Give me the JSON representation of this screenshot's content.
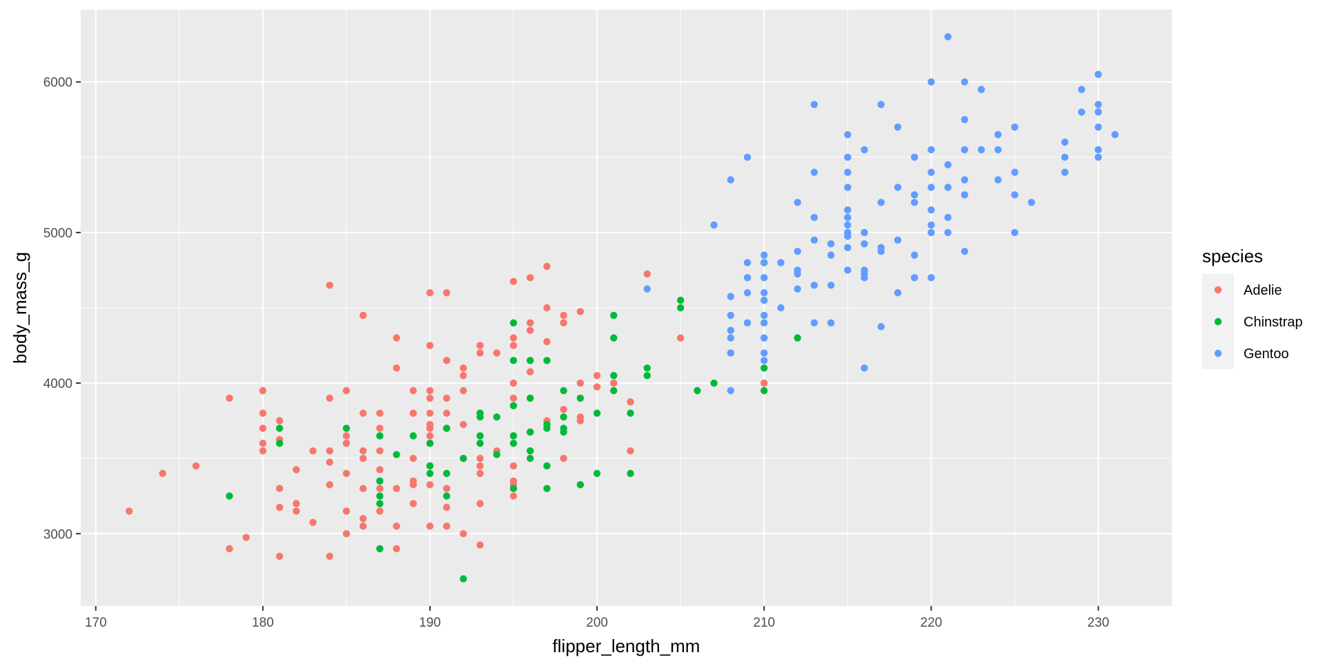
{
  "chart_data": {
    "type": "scatter",
    "title": "",
    "xlabel": "flipper_length_mm",
    "ylabel": "body_mass_g",
    "xlim": [
      169.1,
      234.4
    ],
    "ylim": [
      2520,
      6480
    ],
    "x_ticks": [
      170,
      180,
      190,
      200,
      210,
      220,
      230
    ],
    "y_ticks": [
      3000,
      4000,
      5000,
      6000
    ],
    "grid": true,
    "legend": {
      "title": "species",
      "position": "right"
    },
    "series": [
      {
        "name": "Adelie",
        "color": "#F8766D",
        "points": [
          [
            172,
            3150
          ],
          [
            174,
            3400
          ],
          [
            176,
            3450
          ],
          [
            178,
            3900
          ],
          [
            178,
            2900
          ],
          [
            179,
            2975
          ],
          [
            180,
            3950
          ],
          [
            180,
            3800
          ],
          [
            180,
            3700
          ],
          [
            180,
            3600
          ],
          [
            180,
            3550
          ],
          [
            181,
            3750
          ],
          [
            181,
            3625
          ],
          [
            181,
            3300
          ],
          [
            181,
            3175
          ],
          [
            181,
            2850
          ],
          [
            182,
            3425
          ],
          [
            182,
            3200
          ],
          [
            182,
            3150
          ],
          [
            183,
            3550
          ],
          [
            183,
            3075
          ],
          [
            184,
            4650
          ],
          [
            184,
            3900
          ],
          [
            184,
            3550
          ],
          [
            184,
            3475
          ],
          [
            184,
            3325
          ],
          [
            184,
            2850
          ],
          [
            185,
            3950
          ],
          [
            185,
            3650
          ],
          [
            185,
            3600
          ],
          [
            185,
            3400
          ],
          [
            185,
            3150
          ],
          [
            185,
            3000
          ],
          [
            186,
            4450
          ],
          [
            186,
            3800
          ],
          [
            186,
            3550
          ],
          [
            186,
            3500
          ],
          [
            186,
            3300
          ],
          [
            186,
            3100
          ],
          [
            186,
            3050
          ],
          [
            187,
            3800
          ],
          [
            187,
            3700
          ],
          [
            187,
            3550
          ],
          [
            187,
            3425
          ],
          [
            187,
            3300
          ],
          [
            187,
            3150
          ],
          [
            188,
            4300
          ],
          [
            188,
            4100
          ],
          [
            188,
            3300
          ],
          [
            188,
            3050
          ],
          [
            188,
            2900
          ],
          [
            189,
            3950
          ],
          [
            189,
            3800
          ],
          [
            189,
            3500
          ],
          [
            189,
            3350
          ],
          [
            189,
            3325
          ],
          [
            189,
            3200
          ],
          [
            190,
            4600
          ],
          [
            190,
            4250
          ],
          [
            190,
            3950
          ],
          [
            190,
            3900
          ],
          [
            190,
            3800
          ],
          [
            190,
            3725
          ],
          [
            190,
            3700
          ],
          [
            190,
            3650
          ],
          [
            190,
            3600
          ],
          [
            190,
            3450
          ],
          [
            190,
            3325
          ],
          [
            190,
            3050
          ],
          [
            191,
            4600
          ],
          [
            191,
            4150
          ],
          [
            191,
            3900
          ],
          [
            191,
            3800
          ],
          [
            191,
            3700
          ],
          [
            191,
            3300
          ],
          [
            191,
            3175
          ],
          [
            191,
            3050
          ],
          [
            192,
            4100
          ],
          [
            192,
            4050
          ],
          [
            192,
            3950
          ],
          [
            192,
            3725
          ],
          [
            192,
            3500
          ],
          [
            192,
            3000
          ],
          [
            193,
            4250
          ],
          [
            193,
            4200
          ],
          [
            193,
            3800
          ],
          [
            193,
            3500
          ],
          [
            193,
            3450
          ],
          [
            193,
            3400
          ],
          [
            193,
            3200
          ],
          [
            193,
            2925
          ],
          [
            194,
            4200
          ],
          [
            194,
            3550
          ],
          [
            195,
            4675
          ],
          [
            195,
            4300
          ],
          [
            195,
            4250
          ],
          [
            195,
            4000
          ],
          [
            195,
            3900
          ],
          [
            195,
            3650
          ],
          [
            195,
            3450
          ],
          [
            195,
            3350
          ],
          [
            195,
            3325
          ],
          [
            195,
            3250
          ],
          [
            196,
            4700
          ],
          [
            196,
            4400
          ],
          [
            196,
            4350
          ],
          [
            196,
            4075
          ],
          [
            196,
            3675
          ],
          [
            197,
            4775
          ],
          [
            197,
            4500
          ],
          [
            197,
            4275
          ],
          [
            197,
            3750
          ],
          [
            198,
            4450
          ],
          [
            198,
            4400
          ],
          [
            198,
            3825
          ],
          [
            198,
            3500
          ],
          [
            199,
            4475
          ],
          [
            199,
            4000
          ],
          [
            199,
            3775
          ],
          [
            199,
            3750
          ],
          [
            200,
            4050
          ],
          [
            200,
            3975
          ],
          [
            201,
            4000
          ],
          [
            202,
            3875
          ],
          [
            202,
            3550
          ],
          [
            203,
            4725
          ],
          [
            205,
            4300
          ],
          [
            210,
            4000
          ]
        ]
      },
      {
        "name": "Chinstrap",
        "color": "#00BA38",
        "points": [
          [
            178,
            3250
          ],
          [
            181,
            3700
          ],
          [
            181,
            3600
          ],
          [
            185,
            3700
          ],
          [
            187,
            3650
          ],
          [
            187,
            3350
          ],
          [
            187,
            3250
          ],
          [
            187,
            3200
          ],
          [
            187,
            2900
          ],
          [
            188,
            3525
          ],
          [
            189,
            3650
          ],
          [
            190,
            3600
          ],
          [
            190,
            3450
          ],
          [
            190,
            3400
          ],
          [
            191,
            3700
          ],
          [
            191,
            3400
          ],
          [
            191,
            3250
          ],
          [
            192,
            3500
          ],
          [
            192,
            2700
          ],
          [
            193,
            3800
          ],
          [
            193,
            3775
          ],
          [
            193,
            3650
          ],
          [
            193,
            3600
          ],
          [
            194,
            3775
          ],
          [
            194,
            3525
          ],
          [
            195,
            4400
          ],
          [
            195,
            4150
          ],
          [
            195,
            3850
          ],
          [
            195,
            3650
          ],
          [
            195,
            3600
          ],
          [
            195,
            3300
          ],
          [
            196,
            4150
          ],
          [
            196,
            3900
          ],
          [
            196,
            3675
          ],
          [
            196,
            3550
          ],
          [
            196,
            3500
          ],
          [
            197,
            4150
          ],
          [
            197,
            3725
          ],
          [
            197,
            3700
          ],
          [
            197,
            3450
          ],
          [
            197,
            3300
          ],
          [
            198,
            3950
          ],
          [
            198,
            3775
          ],
          [
            198,
            3700
          ],
          [
            198,
            3675
          ],
          [
            199,
            3900
          ],
          [
            199,
            3325
          ],
          [
            200,
            3800
          ],
          [
            200,
            3400
          ],
          [
            201,
            4450
          ],
          [
            201,
            4300
          ],
          [
            201,
            4050
          ],
          [
            201,
            3950
          ],
          [
            202,
            3800
          ],
          [
            202,
            3400
          ],
          [
            203,
            4100
          ],
          [
            203,
            4050
          ],
          [
            205,
            4550
          ],
          [
            205,
            4500
          ],
          [
            206,
            3950
          ],
          [
            207,
            4000
          ],
          [
            210,
            4800
          ],
          [
            210,
            4100
          ],
          [
            210,
            3950
          ],
          [
            212,
            4300
          ]
        ]
      },
      {
        "name": "Gentoo",
        "color": "#619CFF",
        "points": [
          [
            203,
            4625
          ],
          [
            207,
            5050
          ],
          [
            208,
            5350
          ],
          [
            208,
            4575
          ],
          [
            208,
            4450
          ],
          [
            208,
            4350
          ],
          [
            208,
            4300
          ],
          [
            208,
            4200
          ],
          [
            208,
            3950
          ],
          [
            209,
            5500
          ],
          [
            209,
            4800
          ],
          [
            209,
            4700
          ],
          [
            209,
            4600
          ],
          [
            209,
            4400
          ],
          [
            210,
            4850
          ],
          [
            210,
            4800
          ],
          [
            210,
            4700
          ],
          [
            210,
            4600
          ],
          [
            210,
            4550
          ],
          [
            210,
            4450
          ],
          [
            210,
            4400
          ],
          [
            210,
            4300
          ],
          [
            210,
            4200
          ],
          [
            210,
            4150
          ],
          [
            211,
            4800
          ],
          [
            211,
            4500
          ],
          [
            212,
            5200
          ],
          [
            212,
            4875
          ],
          [
            212,
            4750
          ],
          [
            212,
            4725
          ],
          [
            212,
            4625
          ],
          [
            213,
            5850
          ],
          [
            213,
            5400
          ],
          [
            213,
            5100
          ],
          [
            213,
            4950
          ],
          [
            213,
            4650
          ],
          [
            213,
            4400
          ],
          [
            214,
            4925
          ],
          [
            214,
            4850
          ],
          [
            214,
            4650
          ],
          [
            214,
            4400
          ],
          [
            215,
            5650
          ],
          [
            215,
            5500
          ],
          [
            215,
            5400
          ],
          [
            215,
            5300
          ],
          [
            215,
            5150
          ],
          [
            215,
            5100
          ],
          [
            215,
            5050
          ],
          [
            215,
            5000
          ],
          [
            215,
            4975
          ],
          [
            215,
            4900
          ],
          [
            215,
            4750
          ],
          [
            216,
            5550
          ],
          [
            216,
            5000
          ],
          [
            216,
            4925
          ],
          [
            216,
            4750
          ],
          [
            216,
            4725
          ],
          [
            216,
            4700
          ],
          [
            216,
            4100
          ],
          [
            217,
            5850
          ],
          [
            217,
            5200
          ],
          [
            217,
            4900
          ],
          [
            217,
            4875
          ],
          [
            217,
            4375
          ],
          [
            218,
            5700
          ],
          [
            218,
            5300
          ],
          [
            218,
            4950
          ],
          [
            218,
            4600
          ],
          [
            219,
            5500
          ],
          [
            219,
            5250
          ],
          [
            219,
            5200
          ],
          [
            219,
            4850
          ],
          [
            219,
            4700
          ],
          [
            220,
            6000
          ],
          [
            220,
            5550
          ],
          [
            220,
            5400
          ],
          [
            220,
            5300
          ],
          [
            220,
            5150
          ],
          [
            220,
            5050
          ],
          [
            220,
            5000
          ],
          [
            220,
            4700
          ],
          [
            221,
            6300
          ],
          [
            221,
            5450
          ],
          [
            221,
            5300
          ],
          [
            221,
            5100
          ],
          [
            221,
            5000
          ],
          [
            222,
            6000
          ],
          [
            222,
            5750
          ],
          [
            222,
            5550
          ],
          [
            222,
            5350
          ],
          [
            222,
            5250
          ],
          [
            222,
            4875
          ],
          [
            223,
            5950
          ],
          [
            223,
            5550
          ],
          [
            224,
            5650
          ],
          [
            224,
            5550
          ],
          [
            224,
            5350
          ],
          [
            225,
            5700
          ],
          [
            225,
            5400
          ],
          [
            225,
            5250
          ],
          [
            225,
            5000
          ],
          [
            226,
            5200
          ],
          [
            228,
            5600
          ],
          [
            228,
            5500
          ],
          [
            228,
            5400
          ],
          [
            229,
            5950
          ],
          [
            229,
            5800
          ],
          [
            230,
            6050
          ],
          [
            230,
            5850
          ],
          [
            230,
            5800
          ],
          [
            230,
            5700
          ],
          [
            230,
            5550
          ],
          [
            230,
            5500
          ],
          [
            231,
            5650
          ]
        ]
      }
    ]
  }
}
